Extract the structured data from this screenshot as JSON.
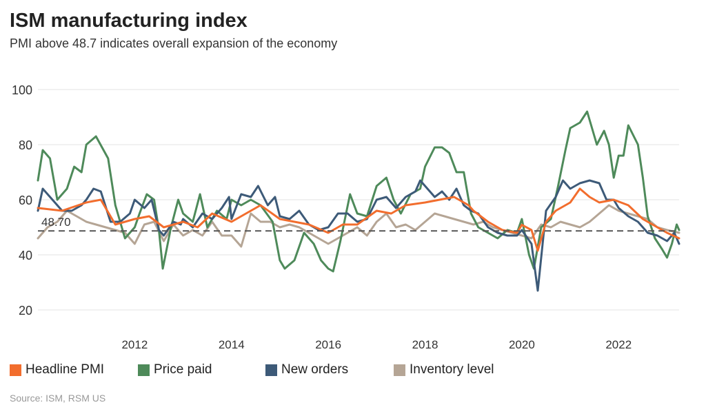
{
  "title": "ISM manufacturing index",
  "subtitle": "PMI above 48.7 indicates overall expansion of the economy",
  "source": "Source: ISM, RSM US",
  "threshold_label": "48.70",
  "legend": [
    {
      "label": "Headline PMI",
      "color": "#f26d2d"
    },
    {
      "label": "Price paid",
      "color": "#4e8a5a"
    },
    {
      "label": "New orders",
      "color": "#3d5a78"
    },
    {
      "label": "Inventory level",
      "color": "#b5a595"
    }
  ],
  "chart_data": {
    "type": "line",
    "title": "ISM manufacturing index",
    "subtitle": "PMI above 48.7 indicates overall expansion of the economy",
    "xlabel": "",
    "ylabel": "",
    "xlim": [
      2010.0,
      2023.25
    ],
    "ylim": [
      20,
      100
    ],
    "x_ticks": [
      2012,
      2014,
      2016,
      2018,
      2020,
      2022
    ],
    "y_ticks": [
      20,
      40,
      60,
      80,
      100
    ],
    "grid": "horizontal",
    "legend_position": "bottom",
    "threshold": {
      "value": 48.7,
      "label": "48.70",
      "style": "dashed"
    },
    "series": [
      {
        "name": "Headline PMI",
        "color": "#f26d2d",
        "width": 3,
        "points": [
          [
            2010.0,
            57
          ],
          [
            2010.5,
            56
          ],
          [
            2011.0,
            59
          ],
          [
            2011.3,
            60
          ],
          [
            2011.6,
            51
          ],
          [
            2012.0,
            53
          ],
          [
            2012.3,
            54
          ],
          [
            2012.6,
            50
          ],
          [
            2013.0,
            52
          ],
          [
            2013.3,
            50
          ],
          [
            2013.6,
            55
          ],
          [
            2014.0,
            52
          ],
          [
            2014.3,
            55
          ],
          [
            2014.6,
            58
          ],
          [
            2015.0,
            53
          ],
          [
            2015.3,
            52
          ],
          [
            2015.6,
            51
          ],
          [
            2016.0,
            48
          ],
          [
            2016.3,
            51
          ],
          [
            2016.6,
            51
          ],
          [
            2017.0,
            56
          ],
          [
            2017.3,
            55
          ],
          [
            2017.6,
            58
          ],
          [
            2018.0,
            59
          ],
          [
            2018.3,
            60
          ],
          [
            2018.6,
            61
          ],
          [
            2018.9,
            58
          ],
          [
            2019.0,
            56
          ],
          [
            2019.3,
            52
          ],
          [
            2019.6,
            49
          ],
          [
            2019.9,
            48
          ],
          [
            2020.0,
            50.9
          ],
          [
            2020.2,
            49
          ],
          [
            2020.33,
            41.5
          ],
          [
            2020.5,
            52
          ],
          [
            2020.7,
            56
          ],
          [
            2021.0,
            59
          ],
          [
            2021.2,
            64
          ],
          [
            2021.4,
            61
          ],
          [
            2021.6,
            59
          ],
          [
            2021.9,
            60
          ],
          [
            2022.2,
            58
          ],
          [
            2022.5,
            53
          ],
          [
            2022.8,
            50
          ],
          [
            2023.0,
            48
          ],
          [
            2023.25,
            46
          ]
        ]
      },
      {
        "name": "Price paid",
        "color": "#4e8a5a",
        "width": 3,
        "points": [
          [
            2010.0,
            67
          ],
          [
            2010.1,
            78
          ],
          [
            2010.25,
            75
          ],
          [
            2010.4,
            60
          ],
          [
            2010.6,
            64
          ],
          [
            2010.75,
            72
          ],
          [
            2010.9,
            70
          ],
          [
            2011.0,
            80
          ],
          [
            2011.2,
            83
          ],
          [
            2011.45,
            75
          ],
          [
            2011.6,
            58
          ],
          [
            2011.8,
            46
          ],
          [
            2012.0,
            50
          ],
          [
            2012.1,
            55
          ],
          [
            2012.25,
            62
          ],
          [
            2012.4,
            60
          ],
          [
            2012.5,
            49
          ],
          [
            2012.58,
            35
          ],
          [
            2012.75,
            50
          ],
          [
            2012.9,
            60
          ],
          [
            2013.0,
            55
          ],
          [
            2013.2,
            52
          ],
          [
            2013.35,
            62
          ],
          [
            2013.5,
            50
          ],
          [
            2013.7,
            56
          ],
          [
            2013.9,
            53
          ],
          [
            2014.0,
            60
          ],
          [
            2014.2,
            58
          ],
          [
            2014.4,
            60
          ],
          [
            2014.6,
            58
          ],
          [
            2014.85,
            52
          ],
          [
            2015.0,
            38
          ],
          [
            2015.1,
            35
          ],
          [
            2015.3,
            38
          ],
          [
            2015.5,
            48
          ],
          [
            2015.7,
            44
          ],
          [
            2015.85,
            38
          ],
          [
            2016.0,
            35
          ],
          [
            2016.1,
            34
          ],
          [
            2016.25,
            45
          ],
          [
            2016.45,
            62
          ],
          [
            2016.6,
            55
          ],
          [
            2016.8,
            54
          ],
          [
            2017.0,
            65
          ],
          [
            2017.2,
            68
          ],
          [
            2017.35,
            60
          ],
          [
            2017.5,
            55
          ],
          [
            2017.7,
            62
          ],
          [
            2017.9,
            64
          ],
          [
            2018.0,
            72
          ],
          [
            2018.2,
            79
          ],
          [
            2018.35,
            79
          ],
          [
            2018.5,
            77
          ],
          [
            2018.65,
            70
          ],
          [
            2018.8,
            70
          ],
          [
            2018.95,
            55
          ],
          [
            2019.1,
            50
          ],
          [
            2019.3,
            48
          ],
          [
            2019.5,
            46
          ],
          [
            2019.7,
            49
          ],
          [
            2019.9,
            48
          ],
          [
            2020.0,
            53
          ],
          [
            2020.15,
            40
          ],
          [
            2020.25,
            35
          ],
          [
            2020.4,
            50
          ],
          [
            2020.6,
            53
          ],
          [
            2020.75,
            65
          ],
          [
            2020.9,
            78
          ],
          [
            2021.0,
            86
          ],
          [
            2021.2,
            88
          ],
          [
            2021.35,
            92
          ],
          [
            2021.55,
            80
          ],
          [
            2021.7,
            85
          ],
          [
            2021.8,
            80
          ],
          [
            2021.9,
            68
          ],
          [
            2022.0,
            76
          ],
          [
            2022.1,
            76
          ],
          [
            2022.2,
            87
          ],
          [
            2022.4,
            80
          ],
          [
            2022.5,
            68
          ],
          [
            2022.6,
            54
          ],
          [
            2022.75,
            46
          ],
          [
            2022.9,
            42
          ],
          [
            2023.0,
            39
          ],
          [
            2023.1,
            44
          ],
          [
            2023.2,
            51
          ],
          [
            2023.25,
            49
          ]
        ]
      },
      {
        "name": "New orders",
        "color": "#3d5a78",
        "width": 3,
        "points": [
          [
            2010.0,
            56
          ],
          [
            2010.1,
            64
          ],
          [
            2010.3,
            60
          ],
          [
            2010.5,
            56
          ],
          [
            2010.7,
            56
          ],
          [
            2010.9,
            58
          ],
          [
            2011.0,
            60
          ],
          [
            2011.15,
            64
          ],
          [
            2011.3,
            63
          ],
          [
            2011.5,
            52
          ],
          [
            2011.7,
            52
          ],
          [
            2011.9,
            55
          ],
          [
            2012.0,
            60
          ],
          [
            2012.2,
            57
          ],
          [
            2012.35,
            60
          ],
          [
            2012.5,
            49
          ],
          [
            2012.6,
            47
          ],
          [
            2012.8,
            52
          ],
          [
            2012.95,
            51
          ],
          [
            2013.0,
            53
          ],
          [
            2013.2,
            50
          ],
          [
            2013.4,
            55
          ],
          [
            2013.6,
            53
          ],
          [
            2013.8,
            57
          ],
          [
            2013.95,
            61
          ],
          [
            2014.0,
            53
          ],
          [
            2014.2,
            62
          ],
          [
            2014.4,
            61
          ],
          [
            2014.55,
            65
          ],
          [
            2014.75,
            58
          ],
          [
            2014.9,
            61
          ],
          [
            2015.0,
            54
          ],
          [
            2015.2,
            53
          ],
          [
            2015.4,
            56
          ],
          [
            2015.6,
            51
          ],
          [
            2015.8,
            49
          ],
          [
            2016.0,
            50
          ],
          [
            2016.2,
            55
          ],
          [
            2016.4,
            55
          ],
          [
            2016.6,
            52
          ],
          [
            2016.8,
            53
          ],
          [
            2017.0,
            60
          ],
          [
            2017.2,
            61
          ],
          [
            2017.4,
            57
          ],
          [
            2017.6,
            61
          ],
          [
            2017.8,
            63
          ],
          [
            2017.9,
            67
          ],
          [
            2018.0,
            65
          ],
          [
            2018.2,
            61
          ],
          [
            2018.35,
            63
          ],
          [
            2018.5,
            60
          ],
          [
            2018.65,
            64
          ],
          [
            2018.8,
            58
          ],
          [
            2018.95,
            56
          ],
          [
            2019.1,
            55
          ],
          [
            2019.3,
            50
          ],
          [
            2019.5,
            48
          ],
          [
            2019.7,
            47
          ],
          [
            2019.9,
            47
          ],
          [
            2020.0,
            49
          ],
          [
            2020.2,
            44
          ],
          [
            2020.33,
            27
          ],
          [
            2020.5,
            56
          ],
          [
            2020.7,
            61
          ],
          [
            2020.85,
            67
          ],
          [
            2021.0,
            64
          ],
          [
            2021.2,
            66
          ],
          [
            2021.4,
            67
          ],
          [
            2021.6,
            66
          ],
          [
            2021.75,
            60
          ],
          [
            2021.9,
            60
          ],
          [
            2022.0,
            57
          ],
          [
            2022.2,
            54
          ],
          [
            2022.4,
            52
          ],
          [
            2022.6,
            48
          ],
          [
            2022.8,
            47
          ],
          [
            2023.0,
            45
          ],
          [
            2023.15,
            48
          ],
          [
            2023.25,
            44
          ]
        ]
      },
      {
        "name": "Inventory level",
        "color": "#b5a595",
        "width": 3,
        "points": [
          [
            2010.0,
            46
          ],
          [
            2010.2,
            50
          ],
          [
            2010.4,
            52
          ],
          [
            2010.6,
            56
          ],
          [
            2010.8,
            54
          ],
          [
            2011.0,
            52
          ],
          [
            2011.2,
            51
          ],
          [
            2011.4,
            50
          ],
          [
            2011.6,
            49
          ],
          [
            2011.8,
            48
          ],
          [
            2012.0,
            44
          ],
          [
            2012.2,
            51
          ],
          [
            2012.4,
            52
          ],
          [
            2012.6,
            45
          ],
          [
            2012.8,
            51
          ],
          [
            2013.0,
            47
          ],
          [
            2013.2,
            49
          ],
          [
            2013.4,
            47
          ],
          [
            2013.6,
            52
          ],
          [
            2013.8,
            47
          ],
          [
            2014.0,
            47
          ],
          [
            2014.2,
            43
          ],
          [
            2014.4,
            55
          ],
          [
            2014.6,
            52
          ],
          [
            2014.8,
            52
          ],
          [
            2015.0,
            50
          ],
          [
            2015.2,
            51
          ],
          [
            2015.4,
            50
          ],
          [
            2015.6,
            48
          ],
          [
            2015.8,
            46
          ],
          [
            2016.0,
            44
          ],
          [
            2016.2,
            46
          ],
          [
            2016.4,
            48
          ],
          [
            2016.6,
            50
          ],
          [
            2016.8,
            47
          ],
          [
            2017.0,
            52
          ],
          [
            2017.2,
            55
          ],
          [
            2017.4,
            50
          ],
          [
            2017.6,
            51
          ],
          [
            2017.8,
            49
          ],
          [
            2018.0,
            52
          ],
          [
            2018.2,
            55
          ],
          [
            2018.4,
            54
          ],
          [
            2018.6,
            53
          ],
          [
            2018.8,
            52
          ],
          [
            2019.0,
            51
          ],
          [
            2019.2,
            52
          ],
          [
            2019.4,
            50
          ],
          [
            2019.6,
            49
          ],
          [
            2019.8,
            48
          ],
          [
            2020.0,
            47
          ],
          [
            2020.2,
            46
          ],
          [
            2020.4,
            51
          ],
          [
            2020.6,
            50
          ],
          [
            2020.8,
            52
          ],
          [
            2021.0,
            51
          ],
          [
            2021.2,
            50
          ],
          [
            2021.4,
            52
          ],
          [
            2021.6,
            55
          ],
          [
            2021.8,
            58
          ],
          [
            2022.0,
            56
          ],
          [
            2022.2,
            55
          ],
          [
            2022.4,
            54
          ],
          [
            2022.6,
            53
          ],
          [
            2022.8,
            50
          ],
          [
            2023.0,
            49
          ],
          [
            2023.25,
            48
          ]
        ]
      }
    ]
  }
}
